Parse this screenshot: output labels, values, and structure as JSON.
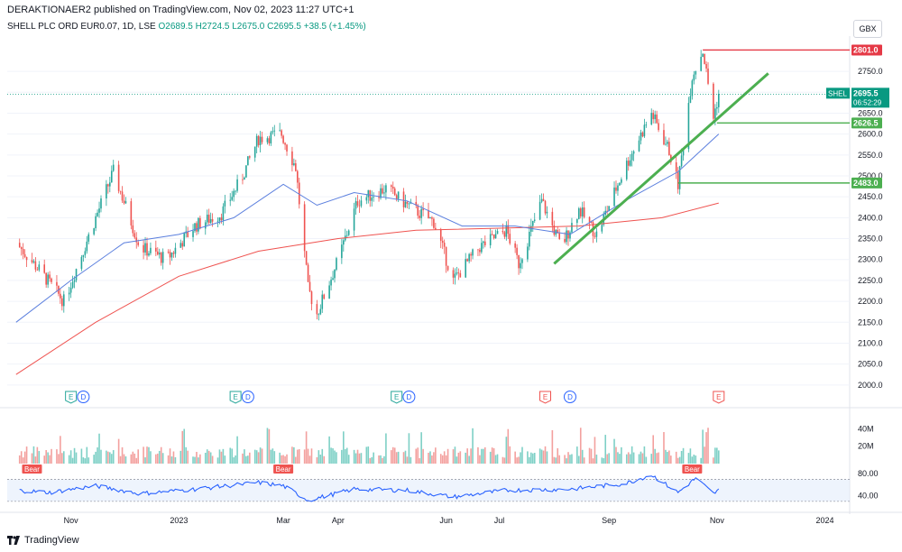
{
  "header": {
    "published": "DERAKTIONAER2 published on TradingView.com, Nov 02, 2023 11:27 UTC+1",
    "symbol": "SHELL PLC ORD EUR0.07, 1D, LSE",
    "ohlc": "O2689.5  H2724.5  L2675.0  C2695.5  +38.5 (+1.45%)",
    "currency": "GBX"
  },
  "footer": {
    "brand": "TradingView"
  },
  "colors": {
    "up": "#26a69a",
    "down": "#ef5350",
    "sma_short": "#5b7fde",
    "sma_long": "#ef5350",
    "trend": "#4caf50",
    "resistance": "#e53946",
    "support": "#4caf50",
    "rsi": "#2962ff"
  },
  "chart_data": {
    "type": "line",
    "y_axis": {
      "range": [
        1950,
        2830
      ],
      "ticks": [
        2000,
        2050,
        2100,
        2150,
        2200,
        2250,
        2300,
        2350,
        2400,
        2450,
        2500,
        2550,
        2600,
        2650,
        2700,
        2750
      ]
    },
    "x_ticks": [
      "Nov",
      "2023",
      "Mar",
      "Apr",
      "Jun",
      "Jul",
      "Sep",
      "Nov",
      "2024"
    ],
    "price_trail": [
      [
        "2022-10-01",
        2340
      ],
      [
        "2022-10-15",
        2270
      ],
      [
        "2022-10-28",
        2200
      ],
      [
        "2022-11-15",
        2400
      ],
      [
        "2022-11-25",
        2510
      ],
      [
        "2022-12-10",
        2330
      ],
      [
        "2022-12-25",
        2300
      ],
      [
        "2023-01-10",
        2380
      ],
      [
        "2023-01-25",
        2410
      ],
      [
        "2023-02-05",
        2490
      ],
      [
        "2023-02-15",
        2590
      ],
      [
        "2023-02-28",
        2600
      ],
      [
        "2023-03-08",
        2520
      ],
      [
        "2023-03-15",
        2230
      ],
      [
        "2023-03-20",
        2170
      ],
      [
        "2023-04-01",
        2300
      ],
      [
        "2023-04-12",
        2440
      ],
      [
        "2023-04-28",
        2470
      ],
      [
        "2023-05-10",
        2430
      ],
      [
        "2023-05-25",
        2390
      ],
      [
        "2023-06-05",
        2250
      ],
      [
        "2023-06-20",
        2330
      ],
      [
        "2023-07-05",
        2370
      ],
      [
        "2023-07-12",
        2290
      ],
      [
        "2023-07-25",
        2440
      ],
      [
        "2023-08-05",
        2330
      ],
      [
        "2023-08-15",
        2420
      ],
      [
        "2023-08-25",
        2360
      ],
      [
        "2023-09-10",
        2520
      ],
      [
        "2023-09-25",
        2650
      ],
      [
        "2023-10-05",
        2560
      ],
      [
        "2023-10-10",
        2480
      ],
      [
        "2023-10-18",
        2740
      ],
      [
        "2023-10-24",
        2800
      ],
      [
        "2023-10-30",
        2640
      ],
      [
        "2023-11-02",
        2695.5
      ]
    ],
    "sma_short": [
      [
        "2022-10-01",
        2150
      ],
      [
        "2022-11-01",
        2250
      ],
      [
        "2022-12-01",
        2340
      ],
      [
        "2023-01-01",
        2360
      ],
      [
        "2023-02-01",
        2400
      ],
      [
        "2023-03-01",
        2480
      ],
      [
        "2023-03-20",
        2430
      ],
      [
        "2023-04-10",
        2460
      ],
      [
        "2023-05-10",
        2440
      ],
      [
        "2023-06-10",
        2380
      ],
      [
        "2023-07-10",
        2380
      ],
      [
        "2023-08-10",
        2360
      ],
      [
        "2023-09-10",
        2440
      ],
      [
        "2023-10-10",
        2510
      ],
      [
        "2023-11-02",
        2600
      ]
    ],
    "sma_long": [
      [
        "2022-10-01",
        2025
      ],
      [
        "2022-11-15",
        2150
      ],
      [
        "2023-01-01",
        2260
      ],
      [
        "2023-02-15",
        2320
      ],
      [
        "2023-04-01",
        2350
      ],
      [
        "2023-05-15",
        2370
      ],
      [
        "2023-07-01",
        2375
      ],
      [
        "2023-08-15",
        2380
      ],
      [
        "2023-10-01",
        2400
      ],
      [
        "2023-11-02",
        2435
      ]
    ],
    "trendline": [
      [
        "2023-08-01",
        2290
      ],
      [
        "2023-11-30",
        2745
      ]
    ],
    "levels": [
      {
        "label": "2801.0",
        "value": 2801.0,
        "from": "2023-10-24",
        "kind": "resistance"
      },
      {
        "label": "2626.5",
        "value": 2626.5,
        "from": "2023-11-01",
        "kind": "support"
      },
      {
        "label": "2483.0",
        "value": 2483.0,
        "from": "2023-10-10",
        "kind": "support"
      }
    ],
    "last_price": {
      "symbol": "SHEL",
      "value": "2695.5",
      "countdown": "06:52:29"
    },
    "events": [
      {
        "label": "E",
        "date": "2022-11-01",
        "color": "#26a69a"
      },
      {
        "label": "D",
        "date": "2022-11-08",
        "color": "#2962ff"
      },
      {
        "label": "E",
        "date": "2023-02-02",
        "color": "#26a69a"
      },
      {
        "label": "D",
        "date": "2023-02-09",
        "color": "#2962ff"
      },
      {
        "label": "E",
        "date": "2023-05-04",
        "color": "#26a69a"
      },
      {
        "label": "D",
        "date": "2023-05-11",
        "color": "#2962ff"
      },
      {
        "label": "E",
        "date": "2023-07-27",
        "color": "#ef5350"
      },
      {
        "label": "D",
        "date": "2023-08-10",
        "color": "#2962ff"
      },
      {
        "label": "E",
        "date": "2023-11-02",
        "color": "#ef5350"
      }
    ],
    "volume": {
      "ticks": [
        "40M",
        "20M"
      ],
      "axis_max": 60
    },
    "rsi": {
      "ticks": [
        "80.00",
        "40.00"
      ],
      "range": [
        20,
        95
      ],
      "upper": 70,
      "lower": 30,
      "points": [
        [
          "2022-10-01",
          50
        ],
        [
          "2022-10-20",
          46
        ],
        [
          "2022-11-15",
          58
        ],
        [
          "2022-12-10",
          44
        ],
        [
          "2023-01-10",
          52
        ],
        [
          "2023-02-15",
          64
        ],
        [
          "2023-03-01",
          58
        ],
        [
          "2023-03-15",
          32
        ],
        [
          "2023-04-10",
          52
        ],
        [
          "2023-05-10",
          50
        ],
        [
          "2023-06-05",
          38
        ],
        [
          "2023-07-05",
          50
        ],
        [
          "2023-08-10",
          52
        ],
        [
          "2023-09-10",
          62
        ],
        [
          "2023-09-25",
          78
        ],
        [
          "2023-10-10",
          46
        ],
        [
          "2023-10-20",
          72
        ],
        [
          "2023-10-30",
          44
        ],
        [
          "2023-11-02",
          50
        ]
      ],
      "signals": [
        {
          "label": "Bear",
          "date": "2022-10-10"
        },
        {
          "label": "Bear",
          "date": "2023-03-01"
        },
        {
          "label": "Bear",
          "date": "2023-10-18"
        }
      ]
    }
  }
}
